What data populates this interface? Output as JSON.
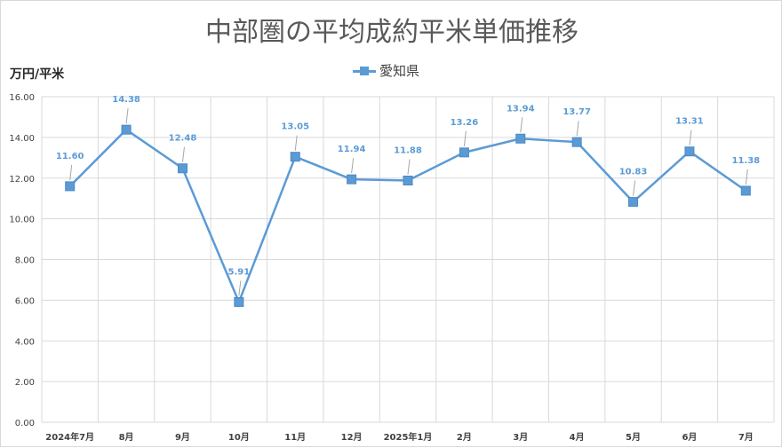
{
  "chart_data": {
    "type": "line",
    "title": "中部圏の平均成約平米単価推移",
    "ylabel": "万円/平米",
    "xlabel": "",
    "categories": [
      "2024年7月",
      "8月",
      "9月",
      "10月",
      "11月",
      "12月",
      "2025年1月",
      "2月",
      "3月",
      "4月",
      "5月",
      "6月",
      "7月"
    ],
    "series": [
      {
        "name": "愛知県",
        "values": [
          11.6,
          14.38,
          12.48,
          5.91,
          13.05,
          11.94,
          11.88,
          13.26,
          13.94,
          13.77,
          10.83,
          13.31,
          11.38
        ]
      }
    ],
    "data_labels": [
      "11.60",
      "14.38",
      "12.48",
      "5.91",
      "13.05",
      "11.94",
      "11.88",
      "13.26",
      "13.94",
      "13.77",
      "10.83",
      "13.31",
      "11.38"
    ],
    "ylim": [
      0,
      16
    ],
    "yticks": [
      "0.00",
      "2.00",
      "4.00",
      "6.00",
      "8.00",
      "10.00",
      "12.00",
      "14.00",
      "16.00"
    ],
    "grid": true,
    "legend_position": "top-center",
    "colors": {
      "series": "#5b9bd5",
      "grid": "#d9d9d9",
      "axis_text": "#404040",
      "title": "#595959"
    }
  }
}
